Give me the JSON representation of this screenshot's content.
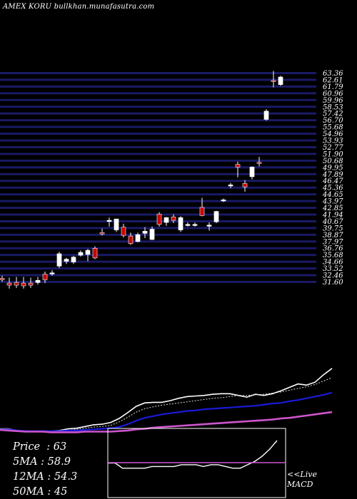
{
  "header": {
    "title": "AMEX KORU bullkhan.munafasutra.com"
  },
  "stats": [
    {
      "label": "Price",
      "value": "63"
    },
    {
      "label": "5MA",
      "value": "58.9"
    },
    {
      "label": "12MA",
      "value": "54.3"
    },
    {
      "label": "50MA",
      "value": "45"
    }
  ],
  "macd_panel": {
    "live_label": "<<Live",
    "macd_label": "MACD"
  },
  "colors": {
    "background": "#000000",
    "grid": "#1a1a66",
    "up": "#ffffff",
    "down": "#cc0000",
    "price_line": "#ffffff",
    "ma_short": "#d9d9d9",
    "ma_mid": "#1a1ad9",
    "ma_long": "#cc55cc"
  },
  "chart_data": [
    {
      "type": "candlestick",
      "title": "AMEX KORU bullkhan.munafasutra.com",
      "y_tick_labels": [
        "63.36",
        "62.61",
        "61.79",
        "60.96",
        "59.96",
        "58.53",
        "57.42",
        "56.70",
        "55.68",
        "54.96",
        "53.93",
        "52.77",
        "51.90",
        "50.68",
        "49.95",
        "47.89",
        "46.47",
        "45.36",
        "44.65",
        "43.97",
        "42.85",
        "41.94",
        "40.67",
        "39.75",
        "38.87",
        "37.97",
        "36.76",
        "35.68",
        "34.66",
        "33.52",
        "32.46",
        "31.60"
      ],
      "ylim": [
        31.6,
        63.36
      ],
      "grid": true,
      "candles": [
        {
          "o": 32.7,
          "h": 33.1,
          "l": 32.2,
          "c": 32.5
        },
        {
          "o": 32.0,
          "h": 32.8,
          "l": 31.2,
          "c": 31.7
        },
        {
          "o": 32.1,
          "h": 32.9,
          "l": 31.3,
          "c": 31.7
        },
        {
          "o": 32.0,
          "h": 32.9,
          "l": 31.2,
          "c": 31.6
        },
        {
          "o": 32.0,
          "h": 32.8,
          "l": 31.3,
          "c": 31.7
        },
        {
          "o": 32.1,
          "h": 32.9,
          "l": 31.8,
          "c": 32.4
        },
        {
          "o": 33.3,
          "h": 33.7,
          "l": 32.0,
          "c": 32.5
        },
        {
          "o": 33.4,
          "h": 33.9,
          "l": 33.1,
          "c": 33.5
        },
        {
          "o": 34.5,
          "h": 36.6,
          "l": 34.2,
          "c": 36.3
        },
        {
          "o": 35.2,
          "h": 35.7,
          "l": 34.8,
          "c": 35.5
        },
        {
          "o": 35.1,
          "h": 36.0,
          "l": 34.8,
          "c": 35.8
        },
        {
          "o": 36.1,
          "h": 36.8,
          "l": 35.9,
          "c": 36.5
        },
        {
          "o": 36.2,
          "h": 37.0,
          "l": 35.2,
          "c": 36.8
        },
        {
          "o": 37.1,
          "h": 37.4,
          "l": 35.5,
          "c": 35.7
        },
        {
          "o": 39.4,
          "h": 40.0,
          "l": 39.0,
          "c": 39.2
        },
        {
          "o": 41.2,
          "h": 41.6,
          "l": 40.3,
          "c": 41.2
        },
        {
          "o": 39.8,
          "h": 41.4,
          "l": 39.5,
          "c": 41.4
        },
        {
          "o": 40.2,
          "h": 40.7,
          "l": 38.7,
          "c": 39.0
        },
        {
          "o": 38.9,
          "h": 39.4,
          "l": 37.6,
          "c": 37.8
        },
        {
          "o": 38.1,
          "h": 39.4,
          "l": 38.0,
          "c": 39.1
        },
        {
          "o": 39.3,
          "h": 40.2,
          "l": 38.6,
          "c": 39.6
        },
        {
          "o": 38.4,
          "h": 40.3,
          "l": 38.3,
          "c": 39.9
        },
        {
          "o": 42.1,
          "h": 42.4,
          "l": 40.3,
          "c": 40.6
        },
        {
          "o": 40.9,
          "h": 41.7,
          "l": 40.4,
          "c": 41.6
        },
        {
          "o": 41.7,
          "h": 42.1,
          "l": 40.8,
          "c": 41.2
        },
        {
          "o": 39.8,
          "h": 41.8,
          "l": 39.5,
          "c": 41.6
        },
        {
          "o": 40.6,
          "h": 40.9,
          "l": 40.3,
          "c": 40.6
        },
        {
          "o": 40.6,
          "h": 40.9,
          "l": 40.3,
          "c": 40.6
        },
        {
          "o": 43.1,
          "h": 44.5,
          "l": 41.8,
          "c": 41.9
        },
        {
          "o": 40.4,
          "h": 40.9,
          "l": 39.7,
          "c": 40.5
        },
        {
          "o": 41.0,
          "h": 42.6,
          "l": 40.8,
          "c": 42.5
        },
        {
          "o": 44.1,
          "h": 44.4,
          "l": 43.9,
          "c": 44.2
        },
        {
          "o": 46.4,
          "h": 46.7,
          "l": 45.9,
          "c": 46.4
        },
        {
          "o": 49.4,
          "h": 49.8,
          "l": 47.5,
          "c": 49.0
        },
        {
          "o": 46.6,
          "h": 47.1,
          "l": 45.4,
          "c": 46.1
        },
        {
          "o": 47.6,
          "h": 49.1,
          "l": 47.2,
          "c": 49.0
        },
        {
          "o": 49.7,
          "h": 50.5,
          "l": 49.1,
          "c": 49.6
        },
        {
          "o": 56.0,
          "h": 57.5,
          "l": 55.8,
          "c": 57.2
        },
        {
          "o": 61.7,
          "h": 63.1,
          "l": 60.7,
          "c": 61.6
        },
        {
          "o": 61.1,
          "h": 62.4,
          "l": 60.9,
          "c": 62.2
        }
      ]
    },
    {
      "type": "line",
      "series": [
        {
          "values": [
            30.8,
            30.8,
            30.5,
            30.4,
            30.3,
            30.3,
            30.4,
            30.5,
            30.8,
            30.9,
            31.2,
            31.5,
            31.6,
            31.9,
            32.6,
            33.6,
            34.7,
            35.3,
            35.4,
            35.4,
            35.7,
            36.1,
            36.4,
            36.5,
            36.6,
            36.8,
            36.9,
            36.9,
            36.6,
            36.3,
            36.8,
            36.6,
            36.9,
            37.4,
            38.0,
            38.6,
            38.4,
            38.9,
            40.2,
            41.3
          ]
        },
        {
          "values": [
            30.8,
            30.8,
            30.4,
            30.3,
            30.3,
            30.3,
            30.4,
            30.5,
            30.6,
            30.7,
            30.9,
            31.1,
            31.2,
            31.4,
            32.0,
            32.8,
            33.7,
            34.3,
            34.6,
            34.9,
            35.1,
            35.3,
            35.5,
            35.7,
            35.9,
            36.1,
            36.2,
            36.4,
            36.6,
            36.6,
            36.7,
            36.8,
            37.0,
            37.2,
            37.5,
            37.8,
            38.1,
            38.5,
            39.1,
            39.7
          ]
        },
        {
          "values": [
            30.7,
            30.7,
            30.5,
            30.4,
            30.4,
            30.4,
            30.4,
            30.4,
            30.5,
            30.5,
            30.6,
            30.7,
            30.8,
            30.9,
            31.1,
            31.6,
            32.2,
            32.7,
            33.0,
            33.3,
            33.5,
            33.7,
            33.9,
            34.0,
            34.2,
            34.3,
            34.4,
            34.5,
            34.6,
            34.7,
            34.8,
            35.0,
            35.2,
            35.3,
            35.6,
            35.8,
            36.1,
            36.4,
            36.7,
            37.1
          ]
        },
        {
          "values": [
            30.6,
            30.5,
            30.4,
            30.3,
            30.3,
            30.3,
            30.2,
            30.2,
            30.2,
            30.2,
            30.3,
            30.3,
            30.3,
            30.3,
            30.4,
            30.5,
            30.7,
            30.8,
            31.0,
            31.1,
            31.2,
            31.3,
            31.4,
            31.5,
            31.6,
            31.7,
            31.8,
            31.9,
            32.0,
            32.1,
            32.2,
            32.3,
            32.4,
            32.6,
            32.7,
            32.9,
            33.1,
            33.3,
            33.5,
            33.7
          ]
        }
      ]
    },
    {
      "type": "line",
      "series": [
        {
          "values": [
            0.0,
            0.0,
            -0.3,
            -0.3,
            -0.3,
            -0.3,
            -0.2,
            -0.2,
            -0.2,
            -0.2,
            -0.1,
            -0.1,
            -0.1,
            -0.2,
            -0.1,
            -0.1,
            -0.2,
            -0.3,
            -0.3,
            -0.1,
            0.1,
            0.4,
            0.8,
            1.3
          ]
        }
      ]
    }
  ]
}
